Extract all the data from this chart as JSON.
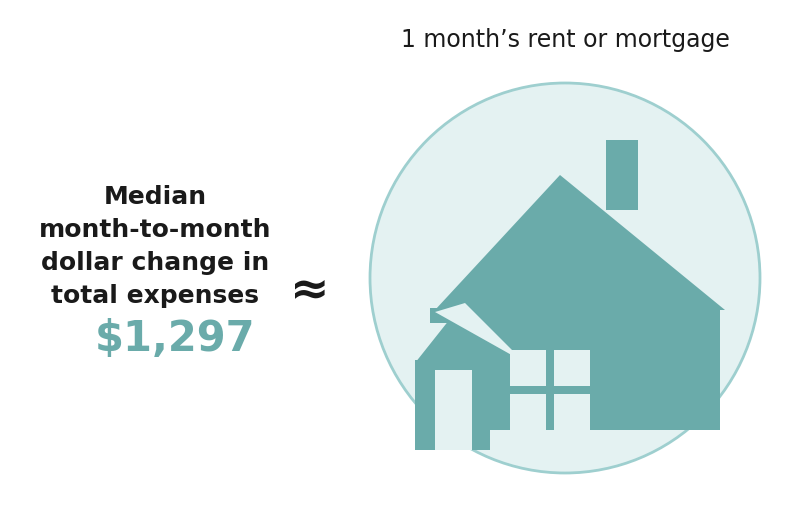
{
  "bg_color": "#ffffff",
  "left_text_lines": [
    "Median",
    "month-to-month",
    "dollar change in",
    "total expenses"
  ],
  "left_text_color": "#1a1a1a",
  "value_text": "$1,297",
  "value_color": "#6aabaa",
  "approx_symbol": "≈",
  "approx_color": "#1a1a1a",
  "circle_bg_color": "#e4f2f2",
  "circle_border_color": "#9ecfcf",
  "house_color": "#6aabaa",
  "window_color": "#e4f2f2",
  "title_text": "1 month’s rent or mortgage",
  "title_color": "#1a1a1a",
  "fig_width": 8.0,
  "fig_height": 5.17,
  "dpi": 100
}
